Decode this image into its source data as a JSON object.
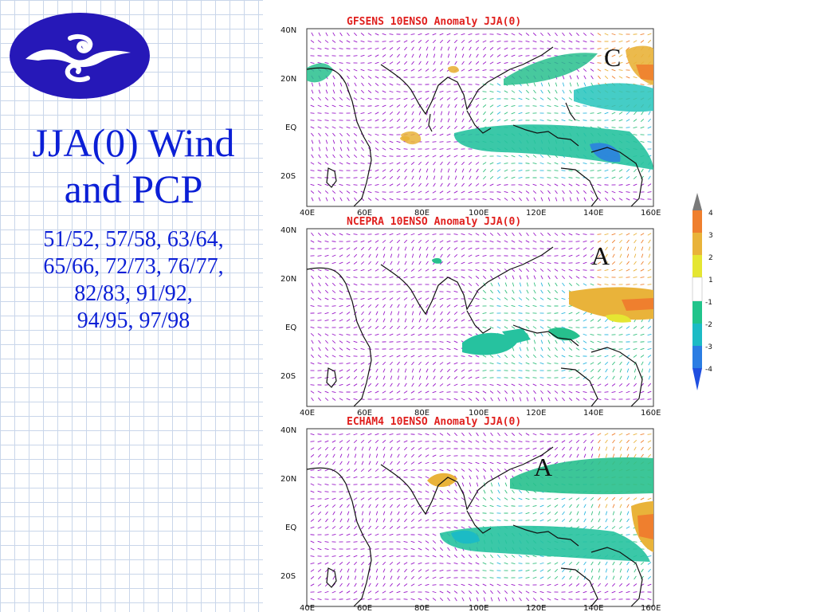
{
  "slide": {
    "title": "JJA(0) Wind and PCP",
    "title_line1": "JJA(0) Wind",
    "title_line2": "and PCP",
    "years_line1": "51/52, 57/58, 63/64,",
    "years_line2": "65/66, 72/73, 76/77,",
    "years_line3": "82/83, 91/92,",
    "years_line4": "94/95, 97/98"
  },
  "colors": {
    "title_text": "#0b1fd6",
    "logo_blue": "#2618b8",
    "panel_title": "#e0201e",
    "wind_arrows": "#9a18c9"
  },
  "maps": [
    {
      "title": "GFSENS 10ENSO Anomaly JJA(0)",
      "letter": "C"
    },
    {
      "title": "NCEPRA 10ENSO Anomaly JJA(0)",
      "letter": "A"
    },
    {
      "title": "ECHAM4 10ENSO Anomaly JJA(0)",
      "letter": "A"
    }
  ],
  "axes": {
    "lat_labels": [
      "40N",
      "20N",
      "EQ",
      "20S"
    ],
    "lon_labels": [
      "40E",
      "60E",
      "80E",
      "100E",
      "120E",
      "140E",
      "160E"
    ]
  },
  "colorbar": {
    "labels": [
      "4",
      "3",
      "2",
      "1",
      "-1",
      "-2",
      "-3",
      "-4"
    ],
    "colors": [
      "#7a7a7a",
      "#ef7f2e",
      "#e9b33a",
      "#e5e632",
      "#ffffff",
      "#21c48b",
      "#1cbbc5",
      "#2b7de3",
      "#1f4fe0"
    ]
  }
}
